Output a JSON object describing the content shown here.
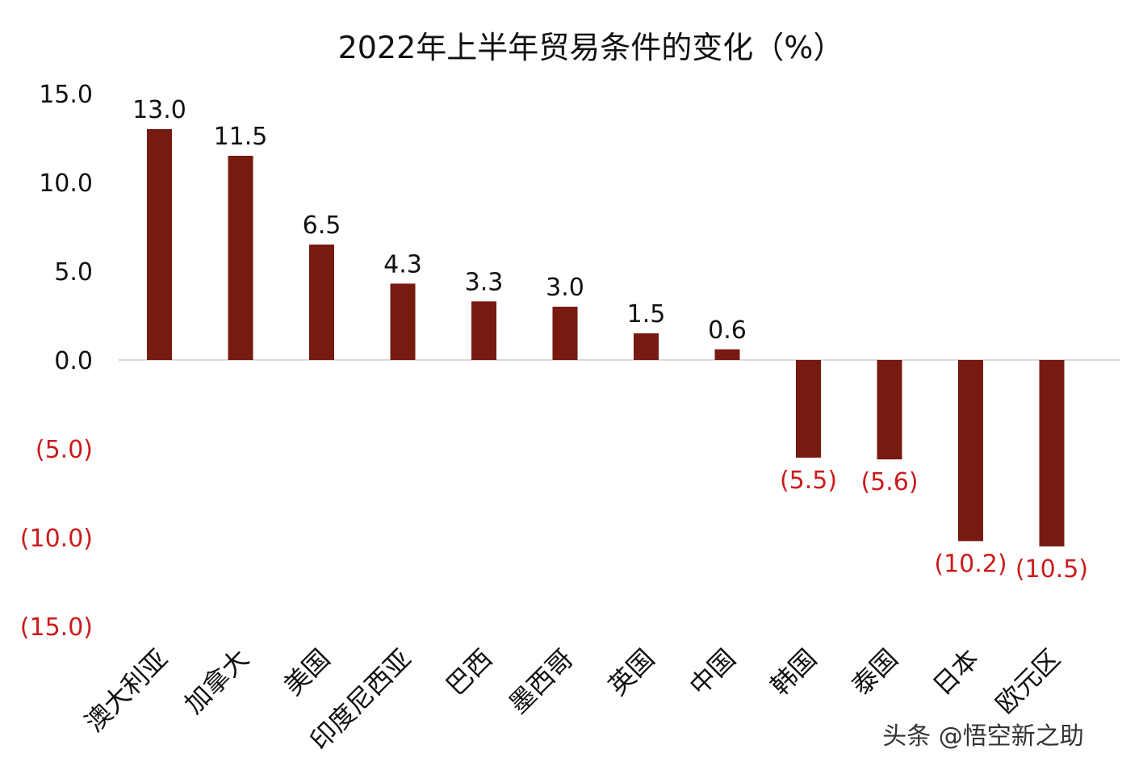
{
  "watermark": "头条 @悟空新之助",
  "chart_data": {
    "type": "bar",
    "title": "2022年上半年贸易条件的变化（%）",
    "categories": [
      "澳大利亚",
      "加拿大",
      "美国",
      "印度尼西亚",
      "巴西",
      "墨西哥",
      "英国",
      "中国",
      "韩国",
      "泰国",
      "日本",
      "欧元区"
    ],
    "values": [
      13.0,
      11.5,
      6.5,
      4.3,
      3.3,
      3.0,
      1.5,
      0.6,
      -5.5,
      -5.6,
      -10.2,
      -10.5
    ],
    "data_labels": [
      "13.0",
      "11.5",
      "6.5",
      "4.3",
      "3.3",
      "3.0",
      "1.5",
      "0.6",
      "(5.5)",
      "(5.6)",
      "(10.2)",
      "(10.5)"
    ],
    "yticks": [
      15,
      10,
      5,
      0,
      -5,
      -10,
      -15
    ],
    "ytick_labels": [
      "15.0",
      "10.0",
      "5.0",
      "0.0",
      "(5.0)",
      "(10.0)",
      "(15.0)"
    ],
    "ylim": [
      -15,
      15
    ],
    "xlabel": "",
    "ylabel": "",
    "grid": false,
    "legend": "none",
    "colors": {
      "bar": "#771a10",
      "negative_label": "#cc1b1b",
      "text": "#111111",
      "axis": "#d9d9d9"
    }
  }
}
